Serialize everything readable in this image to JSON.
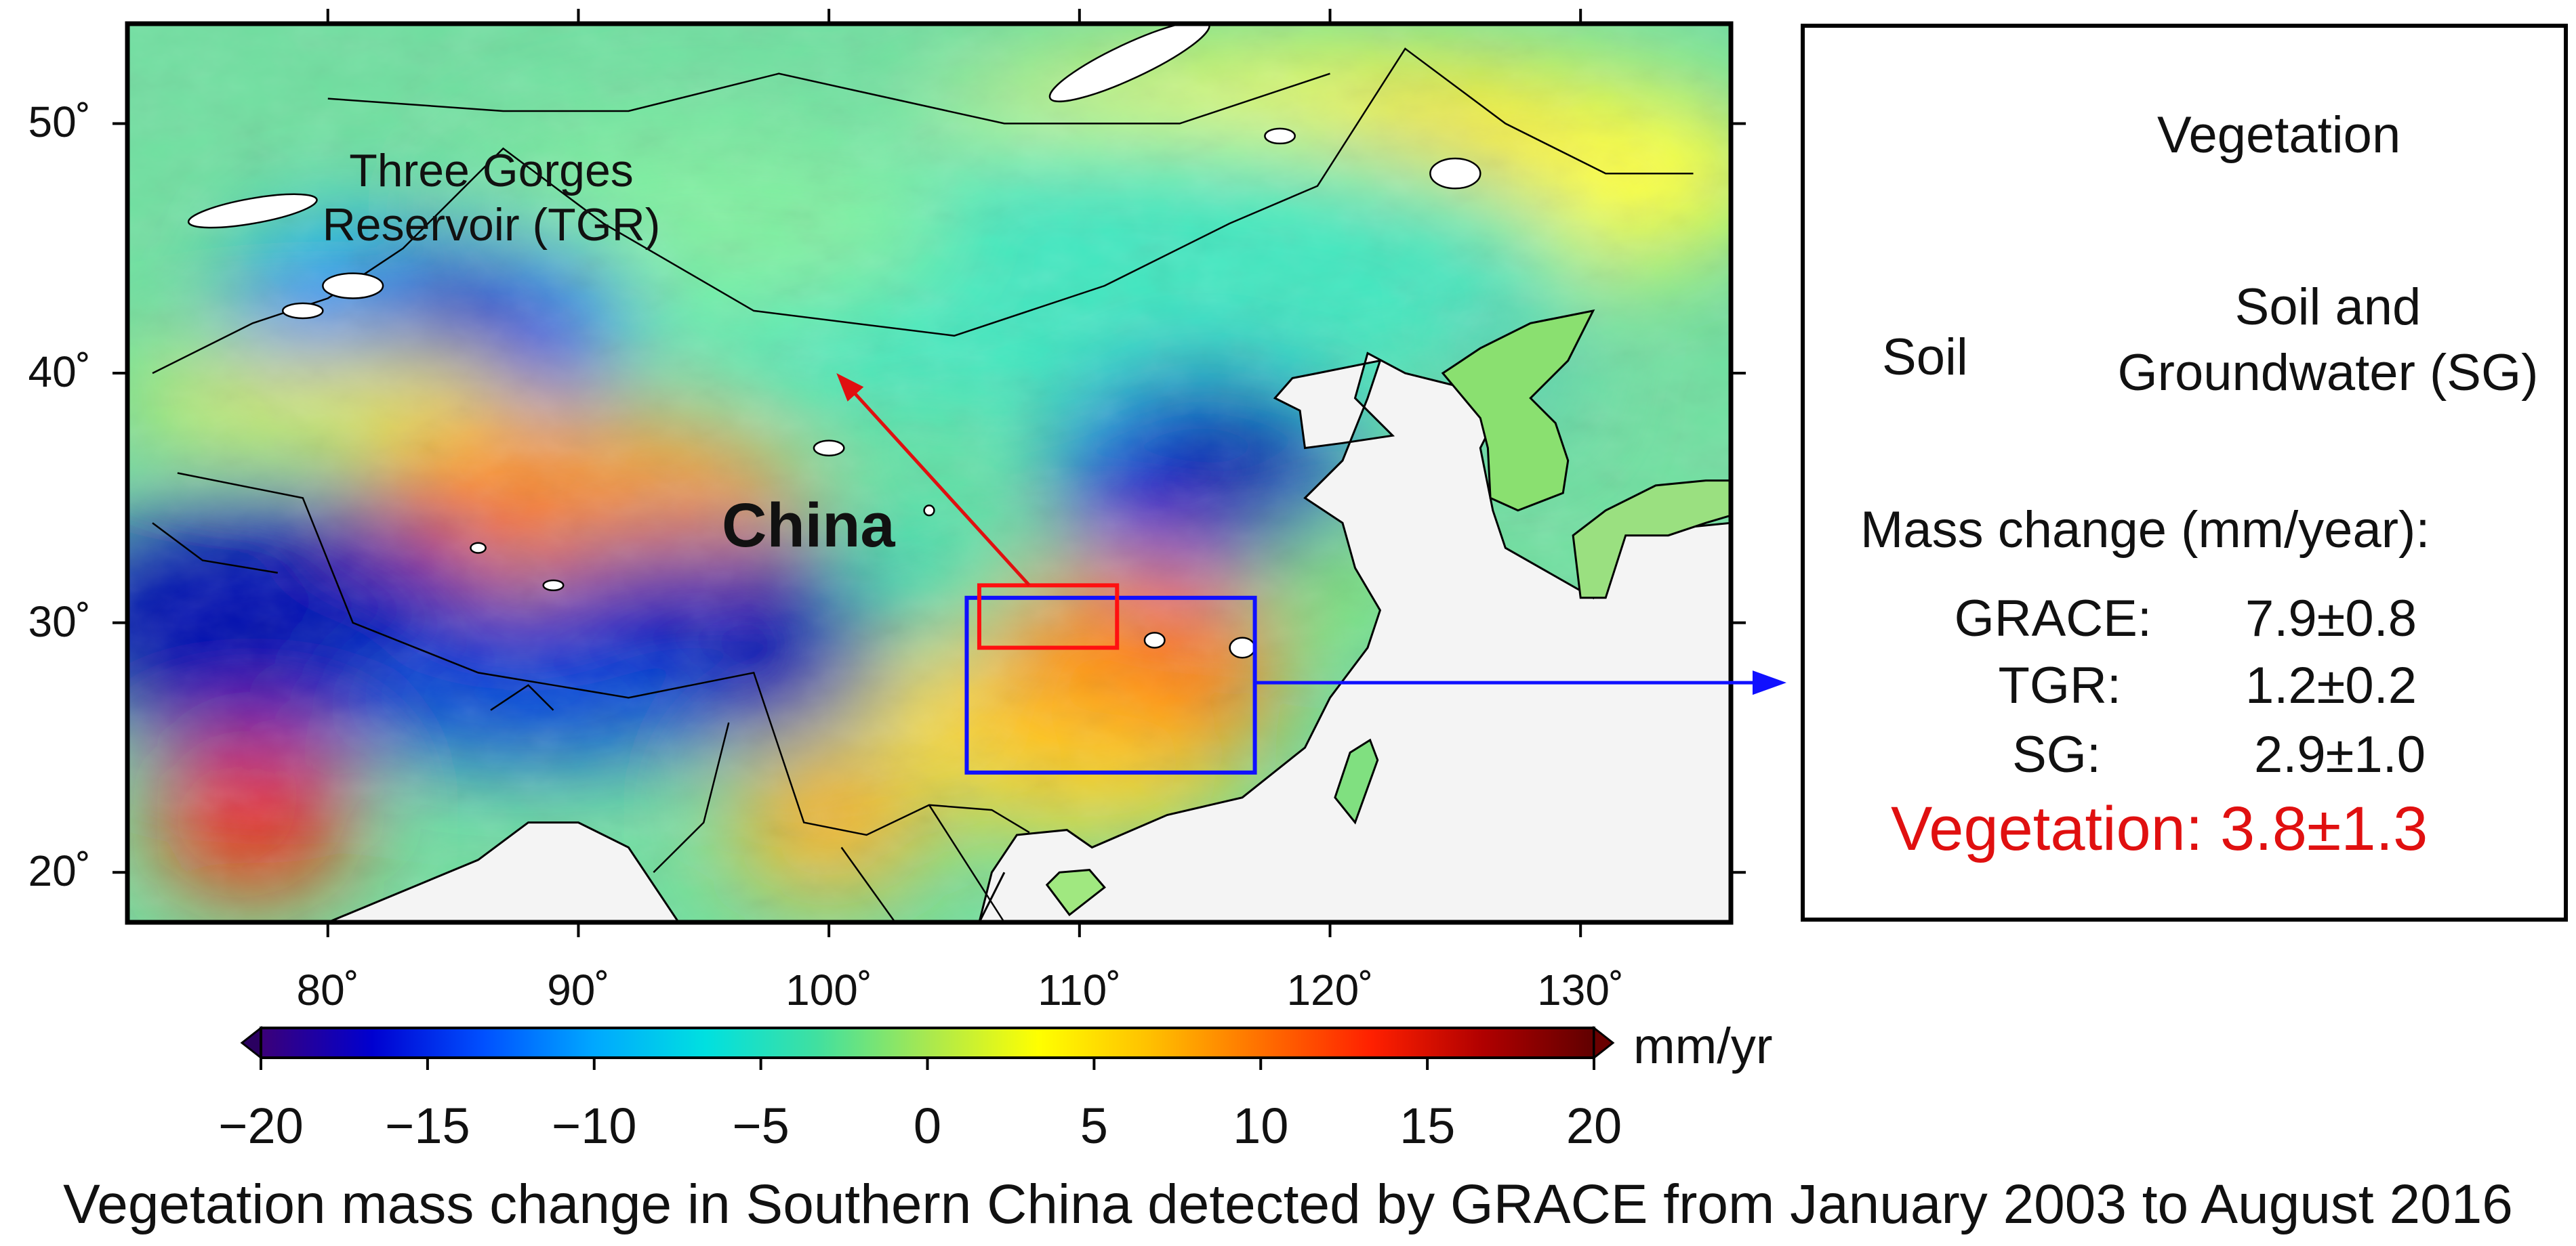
{
  "map": {
    "label_china": "China",
    "label_tgr": "Three Gorges Reservoir (TGR)",
    "lat_ticks": [
      {
        "value": 50,
        "label": "50˚"
      },
      {
        "value": 40,
        "label": "40˚"
      },
      {
        "value": 30,
        "label": "30˚"
      },
      {
        "value": 20,
        "label": "20˚"
      }
    ],
    "lon_ticks": [
      {
        "value": 80,
        "label": "80˚"
      },
      {
        "value": 90,
        "label": "90˚"
      },
      {
        "value": 100,
        "label": "100˚"
      },
      {
        "value": 110,
        "label": "110˚"
      },
      {
        "value": 120,
        "label": "120˚"
      },
      {
        "value": 130,
        "label": "130˚"
      }
    ],
    "extent": {
      "lon": [
        72,
        136
      ],
      "lat": [
        18,
        54
      ]
    },
    "regions": {
      "southern_china_box": {
        "lon": [
          105.5,
          117
        ],
        "lat": [
          24,
          31
        ],
        "color": "#1010ff"
      },
      "tgr_box": {
        "lon": [
          106,
          111.5
        ],
        "lat": [
          29,
          31.5
        ],
        "color": "#ff1010"
      }
    },
    "colors": {
      "land_mask": "#f2f2f2",
      "sea": "#f4f4f4"
    }
  },
  "colorbar": {
    "unit": "mm/yr",
    "range": [
      -20,
      20
    ],
    "ticks": [
      {
        "value": -20,
        "label": "−20"
      },
      {
        "value": -15,
        "label": "−15"
      },
      {
        "value": -10,
        "label": "−10"
      },
      {
        "value": -5,
        "label": "−5"
      },
      {
        "value": 0,
        "label": "0"
      },
      {
        "value": 5,
        "label": "5"
      },
      {
        "value": 10,
        "label": "10"
      },
      {
        "value": 15,
        "label": "15"
      },
      {
        "value": 20,
        "label": "20"
      }
    ],
    "colors": [
      "#3b0078",
      "#0000d0",
      "#0050ff",
      "#00a8ff",
      "#00e0e0",
      "#40e0a0",
      "#a8e850",
      "#ffff00",
      "#ffc000",
      "#ff7000",
      "#ff2000",
      "#b00000",
      "#600000"
    ]
  },
  "panel": {
    "vegetation_label": "Vegetation",
    "soil_label": "Soil",
    "sg_label": "Soil and Groundwater (SG)",
    "mass_title": "Mass change (mm/year):",
    "mass": [
      {
        "name": "GRACE:",
        "value": "7.9±0.8"
      },
      {
        "name": "TGR:",
        "value": "1.2±0.2"
      },
      {
        "name": "SG:",
        "value": "2.9±1.0"
      }
    ],
    "vegetation_result": "Vegetation: 3.8±1.3",
    "colors": {
      "tree": "#0a6a3a",
      "trunk": "#a88a5a",
      "highlight": "#e01010"
    }
  },
  "caption": "Vegetation mass change in Southern China detected by GRACE from January 2003 to August 2016"
}
